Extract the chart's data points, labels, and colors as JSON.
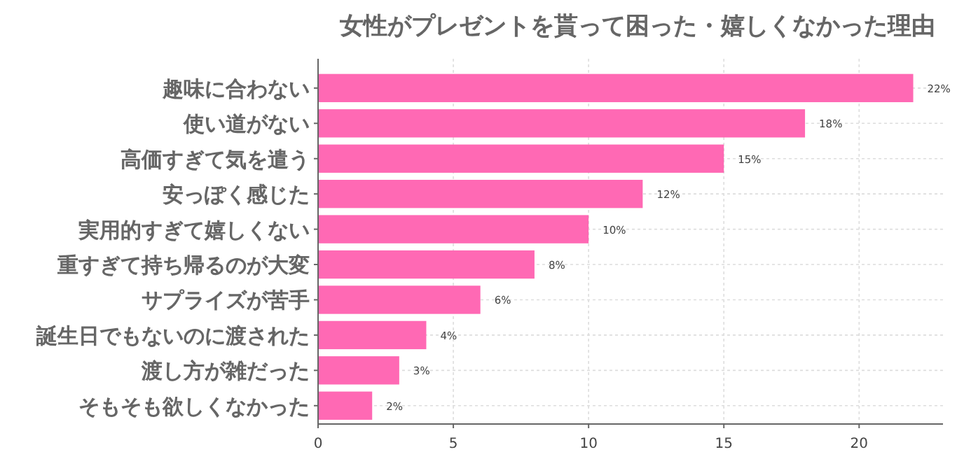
{
  "chart_data": {
    "type": "bar",
    "orientation": "horizontal",
    "title": "女性がプレゼントを貰って困った・嬉しくなかった理由",
    "categories": [
      "趣味に合わない",
      "使い道がない",
      "高価すぎて気を遣う",
      "安っぽく感じた",
      "実用的すぎて嬉しくない",
      "重すぎて持ち帰るのが大変",
      "サプライズが苦手",
      "誕生日でもないのに渡された",
      "渡し方が雑だった",
      "そもそも欲しくなかった"
    ],
    "values": [
      22,
      18,
      15,
      12,
      10,
      8,
      6,
      4,
      3,
      2
    ],
    "value_labels": [
      "22%",
      "18%",
      "15%",
      "12%",
      "10%",
      "8%",
      "6%",
      "4%",
      "3%",
      "2%"
    ],
    "color": "#ff69b4",
    "xlim": [
      0,
      23.1
    ],
    "xticks": [
      0,
      5,
      10,
      15,
      20
    ],
    "grid": true
  }
}
